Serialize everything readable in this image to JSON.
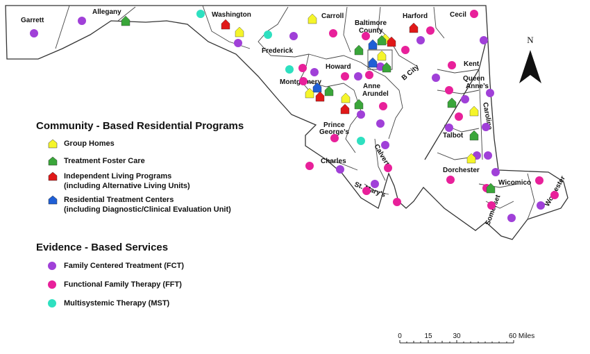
{
  "colors": {
    "group_home": "#f5f52a",
    "foster_care": "#3aa63a",
    "independent_living": "#e01919",
    "residential_treatment": "#1f5fd6",
    "fct": "#a040d8",
    "fft": "#e8209a",
    "mst": "#2ee0c0",
    "border": "#333333"
  },
  "north_arrow": {
    "label": "N"
  },
  "counties": [
    {
      "name": "Garrett"
    },
    {
      "name": "Allegany"
    },
    {
      "name": "Washington"
    },
    {
      "name": "Frederick"
    },
    {
      "name": "Carroll"
    },
    {
      "name": "Baltimore County"
    },
    {
      "name": "Harford"
    },
    {
      "name": "Cecil"
    },
    {
      "name": "Howard"
    },
    {
      "name": "Montgomery"
    },
    {
      "name": "B City"
    },
    {
      "name": "Kent"
    },
    {
      "name": "Queen Anne's"
    },
    {
      "name": "Anne Arundel"
    },
    {
      "name": "Caroline"
    },
    {
      "name": "Prince George's"
    },
    {
      "name": "Talbot"
    },
    {
      "name": "Calvert"
    },
    {
      "name": "Charles"
    },
    {
      "name": "Dorchester"
    },
    {
      "name": "St. Mary's"
    },
    {
      "name": "Wicomico"
    },
    {
      "name": "Somerset"
    },
    {
      "name": "Worcester"
    }
  ],
  "legend": {
    "community_title": "Community - Based Residential Programs",
    "community_items": [
      {
        "key": "group_home",
        "lines": [
          "Group Homes"
        ]
      },
      {
        "key": "foster_care",
        "lines": [
          "Treatment Foster Care"
        ]
      },
      {
        "key": "independent_living",
        "lines": [
          "Independent Living Programs",
          "(including Alternative Living Units)"
        ]
      },
      {
        "key": "residential_treatment",
        "lines": [
          "Residential Treatment Centers",
          "(including Diagnostic/Clinical Evaluation Unit)"
        ]
      }
    ],
    "evidence_title": "Evidence - Based Services",
    "evidence_items": [
      {
        "key": "fct",
        "lines": [
          "Family Centered Treatment (FCT)"
        ]
      },
      {
        "key": "fft",
        "lines": [
          "Functional Family Therapy (FFT)"
        ]
      },
      {
        "key": "mst",
        "lines": [
          "Multisystemic Therapy (MST)"
        ]
      }
    ]
  },
  "scale_bar": {
    "ticks": [
      "0",
      "15",
      "30",
      "60 Miles"
    ]
  }
}
